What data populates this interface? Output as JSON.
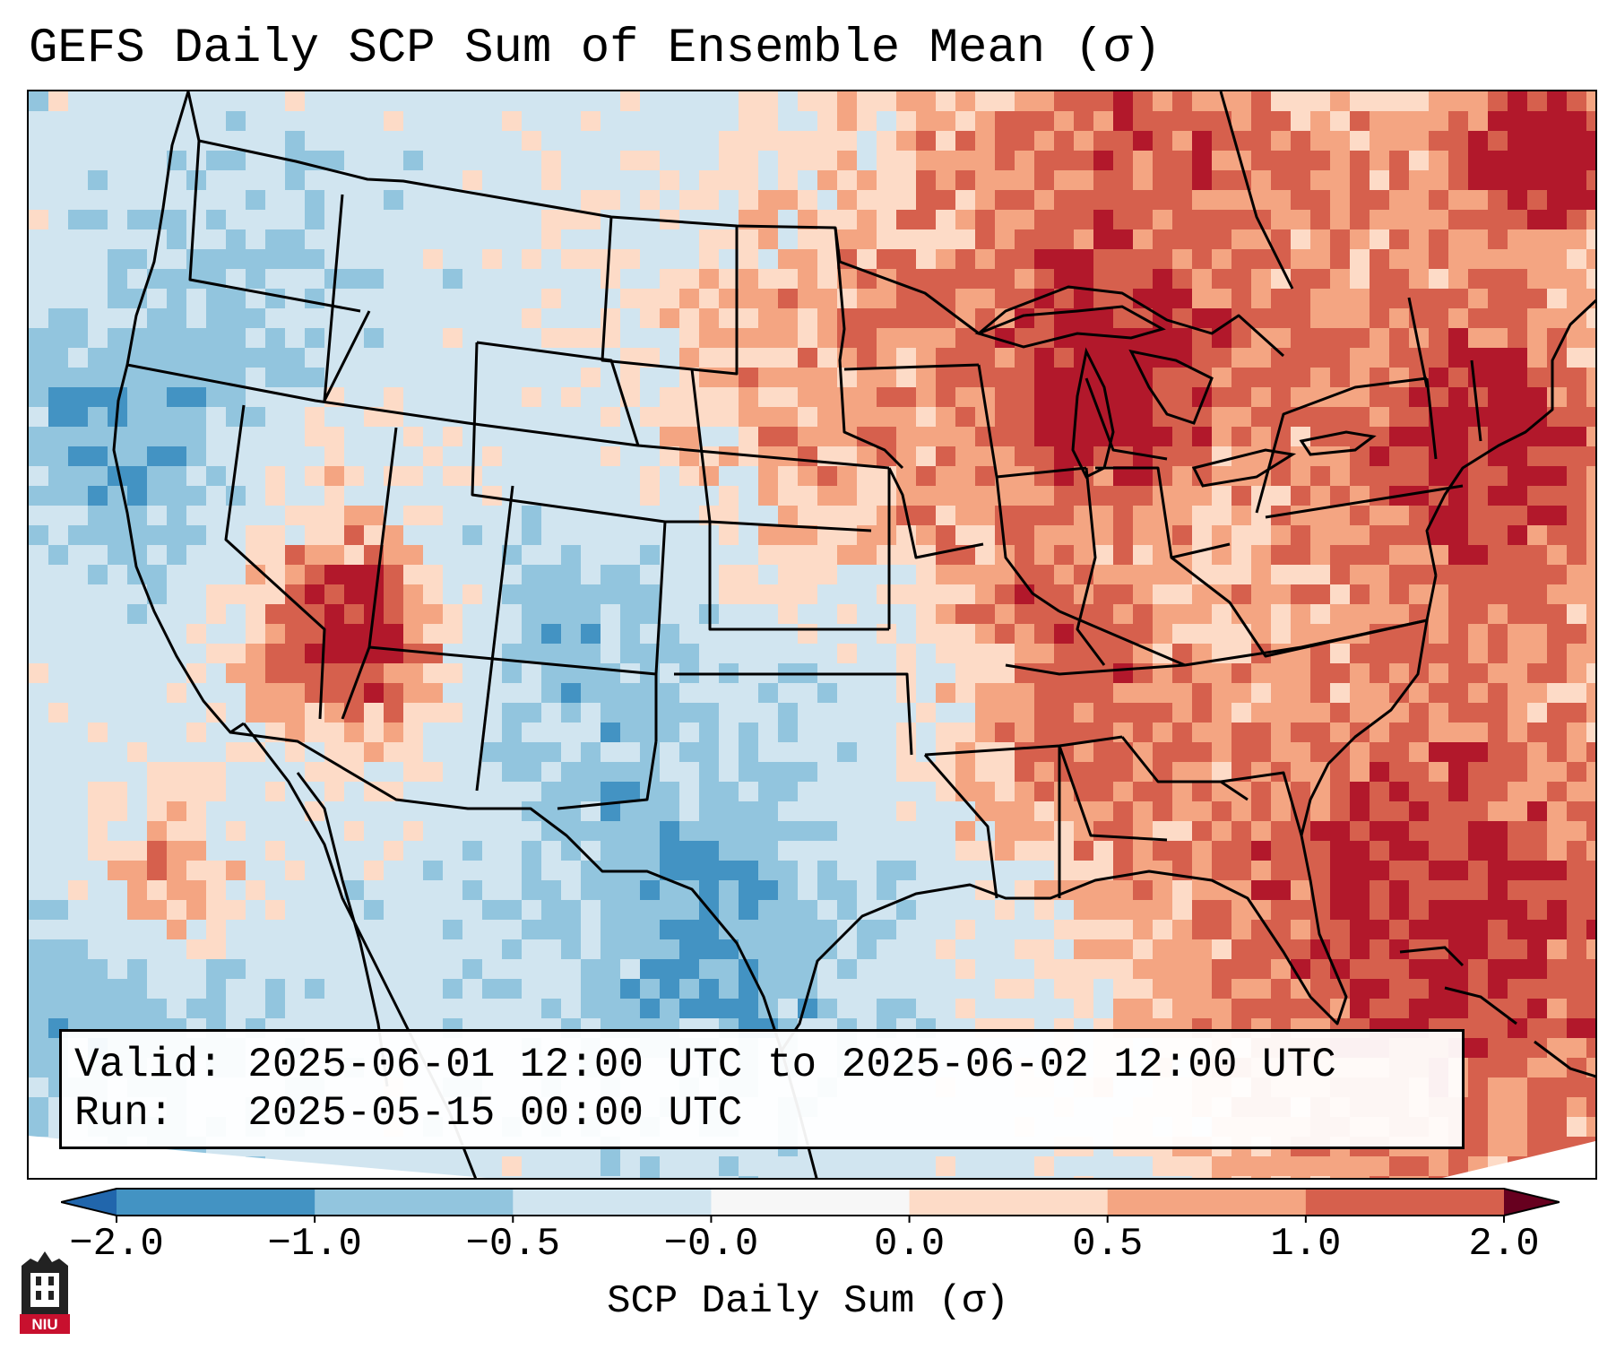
{
  "title": "GEFS Daily SCP Sum of Ensemble Mean (σ)",
  "info": {
    "valid_label": "Valid:",
    "valid_value": "2025-06-01 12:00 UTC to 2025-06-02 12:00 UTC",
    "run_label": "Run:",
    "run_value": "2025-05-15 00:00 UTC"
  },
  "colorbar": {
    "label": "SCP Daily Sum (σ)",
    "ticks": [
      "−2.0",
      "−1.0",
      "−0.5",
      "−0.0",
      "0.0",
      "0.5",
      "1.0",
      "2.0"
    ],
    "colors": [
      "#4393c3",
      "#92c5de",
      "#d1e5f0",
      "#f7f7f7",
      "#fddbc7",
      "#f4a582",
      "#d6604d",
      "#b2182b"
    ]
  },
  "map": {
    "projection": "Lambert Conformal (CONUS)",
    "background_color": "#d1e5f0",
    "features": [
      "state-borders",
      "coastlines",
      "great-lakes"
    ]
  },
  "logo": {
    "text": "NIU",
    "color": "#c8102e"
  }
}
